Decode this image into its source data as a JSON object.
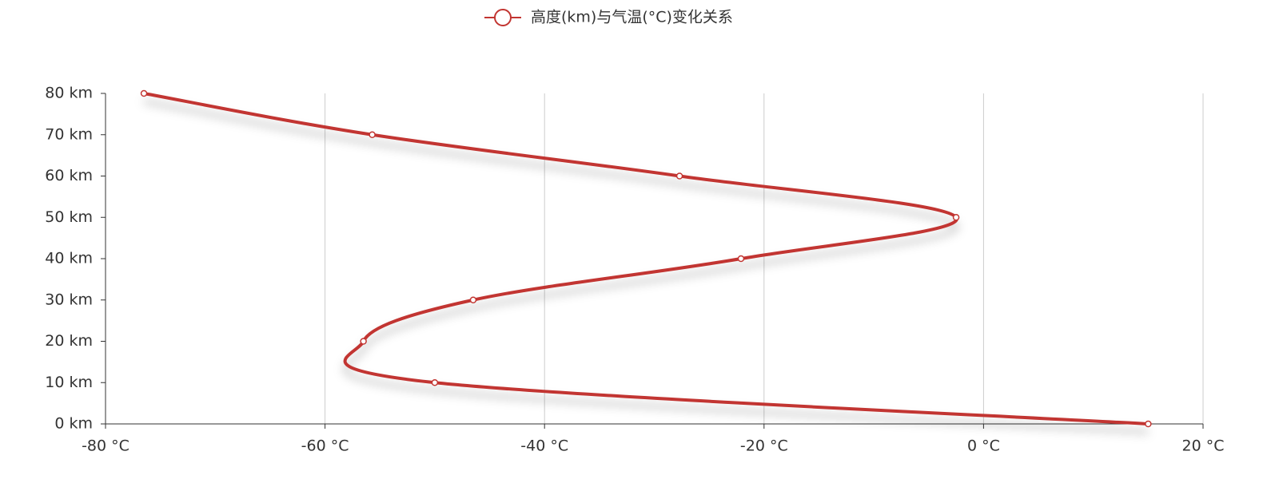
{
  "chart_data": {
    "type": "line",
    "x": [
      15,
      -50,
      -56.5,
      -46.5,
      -22.1,
      -2.5,
      -27.7,
      -55.7,
      -76.5
    ],
    "series": [
      {
        "name": "高度(km)与气温(°C)变化关系",
        "color": "#c23531",
        "values": [
          0,
          10,
          20,
          30,
          40,
          50,
          60,
          70,
          80
        ]
      }
    ],
    "xlim": [
      -80,
      20
    ],
    "xticks": [
      {
        "value": -80,
        "label": "-80 °C"
      },
      {
        "value": -60,
        "label": "-60 °C"
      },
      {
        "value": -40,
        "label": "-40 °C"
      },
      {
        "value": -20,
        "label": "-20 °C"
      },
      {
        "value": 0,
        "label": "0 °C"
      },
      {
        "value": 20,
        "label": "20 °C"
      }
    ],
    "ylim": [
      0,
      80
    ],
    "yticks": [
      {
        "value": 0,
        "label": "0 km"
      },
      {
        "value": 10,
        "label": "10 km"
      },
      {
        "value": 20,
        "label": "20 km"
      },
      {
        "value": 30,
        "label": "30 km"
      },
      {
        "value": 40,
        "label": "40 km"
      },
      {
        "value": 50,
        "label": "50 km"
      },
      {
        "value": 60,
        "label": "60 km"
      },
      {
        "value": 70,
        "label": "70 km"
      },
      {
        "value": 80,
        "label": "80 km"
      }
    ],
    "xgrid": true,
    "legend": "top"
  }
}
